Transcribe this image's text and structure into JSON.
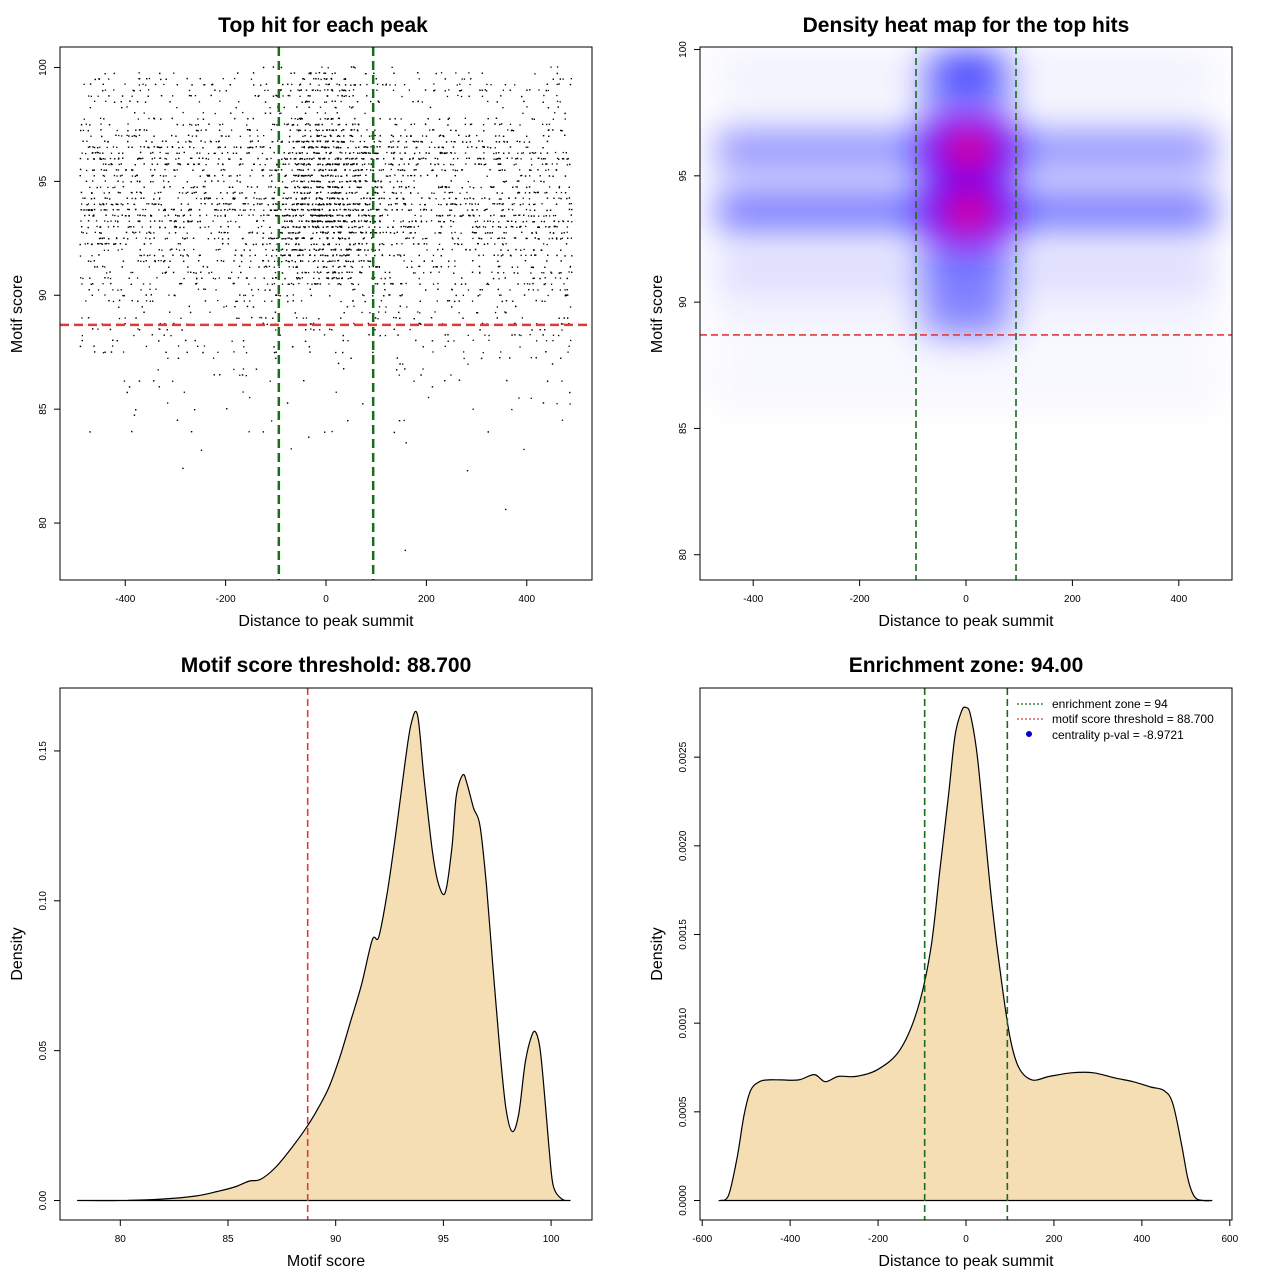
{
  "colors": {
    "threshold_line": "#e03b3b",
    "zone_line": "#1a6e1a",
    "density_fill": "#f5deb3",
    "heat_low": "#ffffff",
    "heat_mid": "#0000ff",
    "heat_high": "#ff0000",
    "legend_point": "#0000cc"
  },
  "chart_data": [
    {
      "id": "scatter",
      "type": "scatter",
      "title": "Top hit for each peak",
      "xlabel": "Distance to peak summit",
      "ylabel": "Motif score",
      "xlim": [
        -530,
        530
      ],
      "ylim": [
        77.5,
        100.9
      ],
      "xticks": [
        -400,
        -200,
        0,
        200,
        400
      ],
      "yticks": [
        80,
        85,
        90,
        95,
        100
      ],
      "x_range_of_points": [
        -490,
        490
      ],
      "motif_score_threshold": 88.7,
      "enrichment_zone": [
        -94,
        94
      ],
      "point_count_approx": 6000,
      "outliers": [
        [
          -285,
          82.4
        ],
        [
          -248,
          83.2
        ],
        [
          -125,
          84.0
        ],
        [
          158,
          78.8
        ],
        [
          358,
          80.6
        ],
        [
          282,
          82.3
        ],
        [
          -470,
          84.0
        ]
      ]
    },
    {
      "id": "heatmap",
      "type": "heatmap",
      "title": "Density heat map for the top hits",
      "xlabel": "Distance to peak summit",
      "ylabel": "Motif score",
      "xlim": [
        -500,
        500
      ],
      "ylim": [
        79,
        100.1
      ],
      "xticks": [
        -400,
        -200,
        0,
        200,
        400
      ],
      "yticks": [
        80,
        85,
        90,
        95,
        100
      ],
      "motif_score_threshold": 88.7,
      "enrichment_zone": [
        -94,
        94
      ],
      "hotspots": [
        {
          "x": 5,
          "y": 96.0,
          "level": "high"
        },
        {
          "x": 5,
          "y": 93.6,
          "level": "high"
        },
        {
          "x": 5,
          "y": 99.3,
          "level": "mid"
        }
      ]
    },
    {
      "id": "score-density",
      "type": "area",
      "title": "Motif score threshold: 88.700",
      "xlabel": "Motif score",
      "ylabel": "Density",
      "xlim": [
        77.2,
        101.9
      ],
      "ylim": [
        -0.0065,
        0.171
      ],
      "xticks": [
        80,
        85,
        90,
        95,
        100
      ],
      "yticks": [
        0.0,
        0.05,
        0.1,
        0.15
      ],
      "ytick_labels": [
        "0.00",
        "0.05",
        "0.10",
        "0.15"
      ],
      "threshold": 88.7,
      "x": [
        78.0,
        80.0,
        82.0,
        83.5,
        84.5,
        85.3,
        86.0,
        86.5,
        87.2,
        88.0,
        88.7,
        89.2,
        89.7,
        90.2,
        90.7,
        91.2,
        91.7,
        92.0,
        92.4,
        92.8,
        93.2,
        93.5,
        93.8,
        94.1,
        94.5,
        94.8,
        95.1,
        95.4,
        95.6,
        95.9,
        96.1,
        96.4,
        96.7,
        97.0,
        97.3,
        97.6,
        97.9,
        98.2,
        98.5,
        98.8,
        99.1,
        99.3,
        99.5,
        99.7,
        99.9,
        100.1,
        100.5,
        100.9
      ],
      "y": [
        0.0,
        0.0,
        0.0005,
        0.0015,
        0.003,
        0.0045,
        0.0065,
        0.007,
        0.011,
        0.018,
        0.025,
        0.031,
        0.038,
        0.048,
        0.06,
        0.072,
        0.087,
        0.088,
        0.103,
        0.123,
        0.145,
        0.159,
        0.162,
        0.141,
        0.116,
        0.105,
        0.103,
        0.118,
        0.135,
        0.142,
        0.139,
        0.131,
        0.125,
        0.105,
        0.078,
        0.052,
        0.031,
        0.023,
        0.029,
        0.046,
        0.055,
        0.056,
        0.05,
        0.035,
        0.018,
        0.005,
        0.0005,
        0.0
      ]
    },
    {
      "id": "distance-density",
      "type": "area",
      "title": "Enrichment zone: 94.00",
      "xlabel": "Distance to peak summit",
      "ylabel": "Density",
      "xlim": [
        -605,
        605
      ],
      "ylim": [
        -0.00011,
        0.00289
      ],
      "xticks": [
        -600,
        -400,
        -200,
        0,
        200,
        400,
        600
      ],
      "yticks": [
        0.0,
        0.0005,
        0.001,
        0.0015,
        0.002,
        0.0025
      ],
      "ytick_labels": [
        "0.0000",
        "0.0005",
        "0.0010",
        "0.0015",
        "0.0020",
        "0.0025"
      ],
      "enrichment_zone": [
        -94,
        94
      ],
      "x": [
        -560,
        -540,
        -520,
        -505,
        -490,
        -470,
        -450,
        -420,
        -380,
        -345,
        -320,
        -290,
        -250,
        -200,
        -150,
        -110,
        -80,
        -60,
        -40,
        -25,
        -10,
        0,
        10,
        25,
        40,
        60,
        80,
        100,
        120,
        150,
        190,
        240,
        290,
        340,
        380,
        420,
        450,
        470,
        490,
        505,
        520,
        540,
        560
      ],
      "y": [
        0.0,
        3e-05,
        0.00025,
        0.00048,
        0.00062,
        0.00067,
        0.00068,
        0.00068,
        0.00068,
        0.00071,
        0.00067,
        0.0007,
        0.0007,
        0.00074,
        0.00085,
        0.00108,
        0.00142,
        0.00185,
        0.00228,
        0.00262,
        0.00276,
        0.00278,
        0.00274,
        0.00252,
        0.00215,
        0.00165,
        0.00125,
        0.00092,
        0.00075,
        0.00068,
        0.0007,
        0.00072,
        0.00072,
        0.00069,
        0.00067,
        0.00064,
        0.00062,
        0.00055,
        0.00032,
        0.00012,
        2e-05,
        0.0,
        0.0
      ],
      "legend": [
        {
          "label": "enrichment zone = 94",
          "style": "dotted-line",
          "color": "#1a6e1a"
        },
        {
          "label": "motif score threshold = 88.700",
          "style": "dotted-line",
          "color": "#e03b3b"
        },
        {
          "label": "centrality p-val = -8.9721",
          "style": "point",
          "color": "#0000cc"
        }
      ]
    }
  ]
}
